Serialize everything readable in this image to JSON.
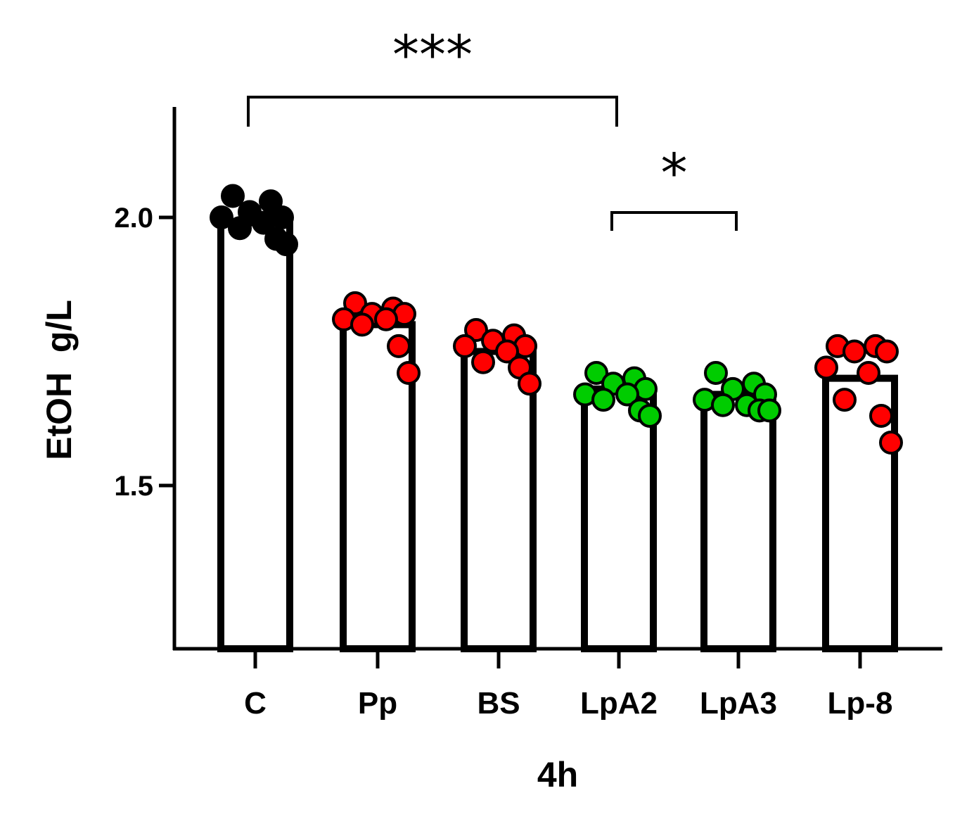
{
  "chart_data": {
    "type": "bar",
    "title": "",
    "xlabel": "4h",
    "ylabel": "EtOH  g/L",
    "ylim": [
      1.2,
      2.2
    ],
    "yticks": [
      1.5,
      2.0
    ],
    "ytick_labels": [
      "1.5",
      "2.0"
    ],
    "grid": false,
    "categories": [
      "C",
      "Pp",
      "BS",
      "LpA2",
      "LpA3",
      "Lp-8"
    ],
    "values": [
      1.99,
      1.8,
      1.75,
      1.68,
      1.67,
      1.7
    ],
    "point_colors": [
      "#000000",
      "#ff0000",
      "#ff0000",
      "#00cc00",
      "#00cc00",
      "#ff0000"
    ],
    "points": [
      [
        2.04,
        2.03,
        2.01,
        2.0,
        2.0,
        1.99,
        1.98,
        1.96,
        1.95
      ],
      [
        1.84,
        1.83,
        1.82,
        1.82,
        1.81,
        1.81,
        1.8,
        1.76,
        1.71
      ],
      [
        1.79,
        1.78,
        1.77,
        1.76,
        1.76,
        1.75,
        1.73,
        1.72,
        1.69
      ],
      [
        1.71,
        1.7,
        1.69,
        1.68,
        1.67,
        1.67,
        1.66,
        1.64,
        1.63
      ],
      [
        1.71,
        1.69,
        1.68,
        1.67,
        1.66,
        1.65,
        1.65,
        1.64,
        1.64
      ],
      [
        1.76,
        1.76,
        1.75,
        1.75,
        1.72,
        1.71,
        1.66,
        1.63,
        1.58
      ]
    ],
    "significance": [
      {
        "from": "C",
        "to": "LpA2",
        "label": "***"
      },
      {
        "from": "LpA2",
        "to": "LpA3",
        "label": "*"
      }
    ]
  }
}
